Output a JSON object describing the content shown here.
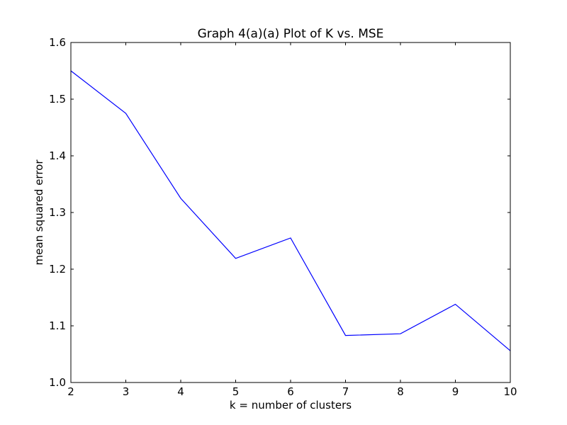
{
  "chart_data": {
    "type": "line",
    "title": "Graph 4(a)(a) Plot of K vs. MSE",
    "xlabel": "k = number of clusters",
    "ylabel": "mean squared error",
    "xlim": [
      2,
      10
    ],
    "ylim": [
      1.0,
      1.6
    ],
    "x_ticks": [
      "2",
      "3",
      "4",
      "5",
      "6",
      "7",
      "8",
      "9",
      "10"
    ],
    "y_ticks": [
      "1.0",
      "1.1",
      "1.2",
      "1.3",
      "1.4",
      "1.5",
      "1.6"
    ],
    "grid": false,
    "series": [
      {
        "color": "#0000ff",
        "x": [
          2,
          3,
          4,
          5,
          6,
          7,
          8,
          9,
          10
        ],
        "y": [
          1.55,
          1.475,
          1.325,
          1.219,
          1.255,
          1.083,
          1.086,
          1.138,
          1.056
        ]
      }
    ]
  }
}
